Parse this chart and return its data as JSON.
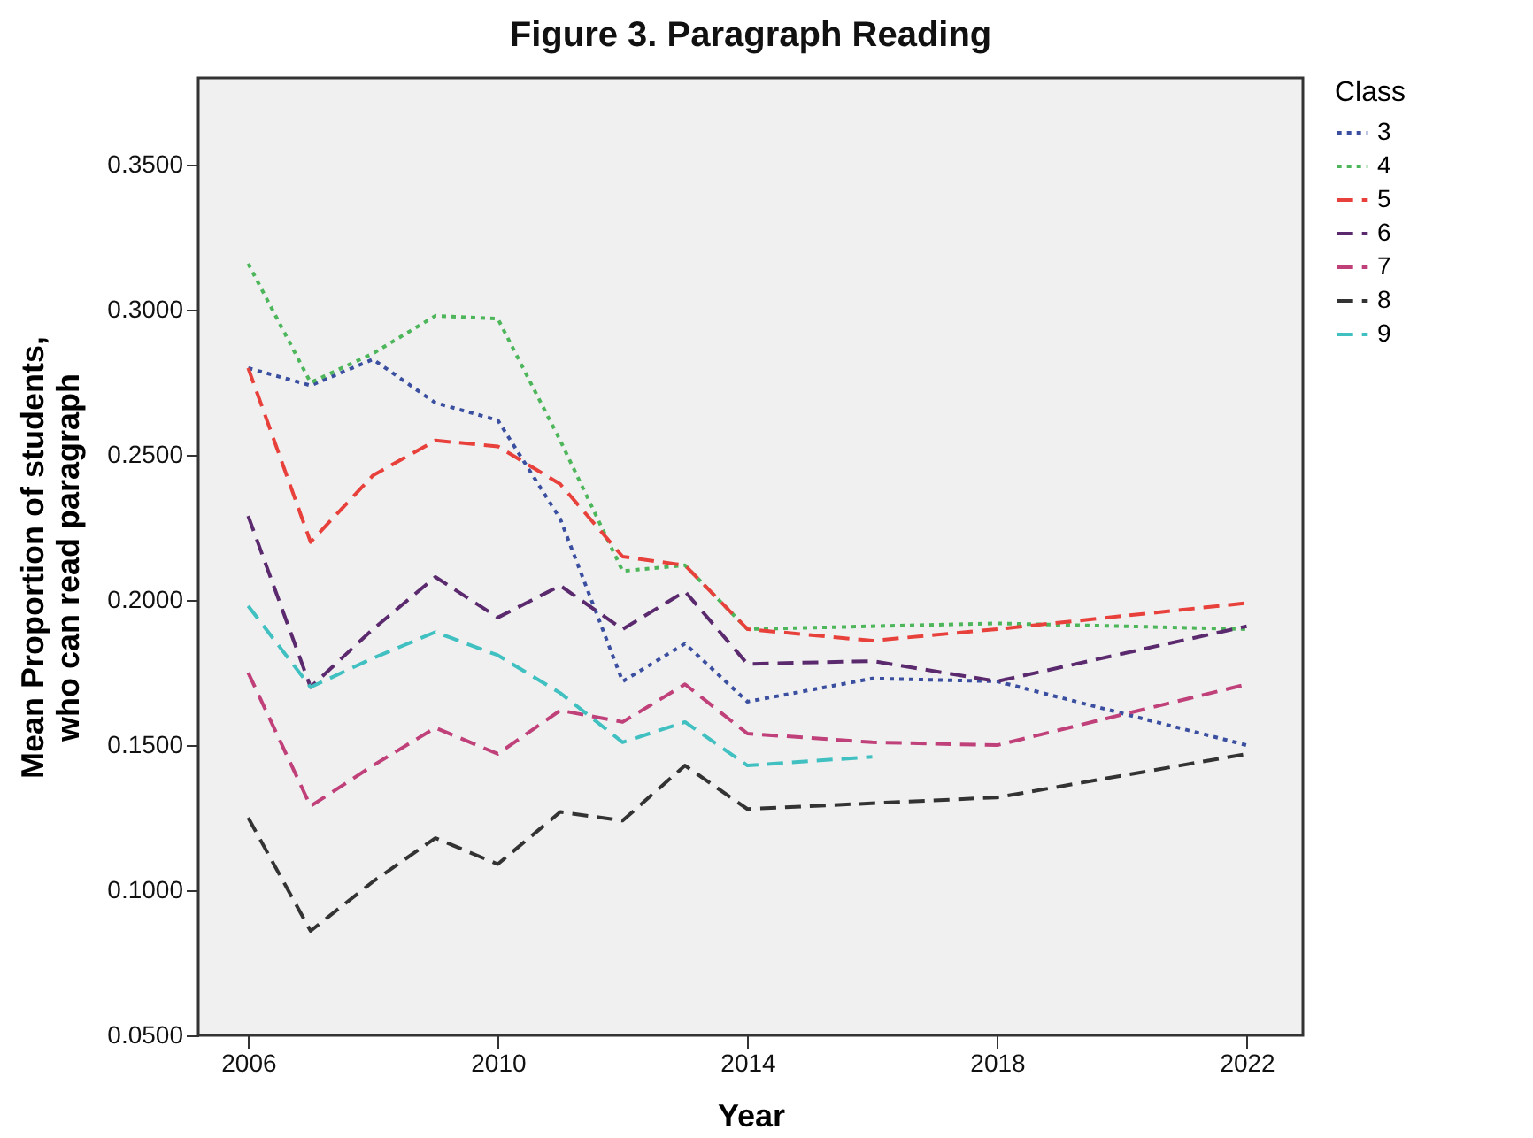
{
  "chart_data": {
    "type": "line",
    "title": "Figure 3. Paragraph Reading",
    "xlabel": "Year",
    "ylabel": "Mean Proportion of students, who can read paragraph",
    "legend_title": "Class",
    "legend": "top right",
    "grid": false,
    "marker": "none",
    "xlim": [
      2005.2,
      2022.9
    ],
    "xticks": [
      2006,
      2010,
      2014,
      2018,
      2022
    ],
    "ylim": [
      0.05,
      0.38
    ],
    "yticks": [
      {
        "value": 0.05,
        "label": "0.0500"
      },
      {
        "value": 0.1,
        "label": "0.1000"
      },
      {
        "value": 0.15,
        "label": "0.1500"
      },
      {
        "value": 0.2,
        "label": "0.2000"
      },
      {
        "value": 0.25,
        "label": "0.2500"
      },
      {
        "value": 0.3,
        "label": "0.3000"
      },
      {
        "value": 0.35,
        "label": "0.3500"
      }
    ],
    "series": [
      {
        "name": "3",
        "color": "#3b4fa0",
        "line_style": "dotted",
        "x": [
          2006,
          2007,
          2008,
          2009,
          2010,
          2011,
          2012,
          2013,
          2014,
          2016,
          2018,
          2022
        ],
        "values": [
          0.28,
          0.274,
          0.283,
          0.268,
          0.262,
          0.228,
          0.172,
          0.185,
          0.165,
          0.173,
          0.172,
          0.15
        ]
      },
      {
        "name": "4",
        "color": "#4db65a",
        "line_style": "dotted",
        "x": [
          2006,
          2007,
          2008,
          2009,
          2010,
          2011,
          2012,
          2013,
          2014,
          2018,
          2022
        ],
        "values": [
          0.316,
          0.275,
          0.285,
          0.298,
          0.297,
          0.255,
          0.21,
          0.212,
          0.19,
          0.192,
          0.19
        ]
      },
      {
        "name": "5",
        "color": "#e8413c",
        "line_style": "dashed",
        "x": [
          2006,
          2007,
          2008,
          2009,
          2010,
          2011,
          2012,
          2013,
          2014,
          2016,
          2018,
          2022
        ],
        "values": [
          0.28,
          0.22,
          0.243,
          0.255,
          0.253,
          0.24,
          0.215,
          0.212,
          0.19,
          0.186,
          0.19,
          0.199
        ]
      },
      {
        "name": "6",
        "color": "#5b2a6e",
        "line_style": "dashed",
        "x": [
          2006,
          2007,
          2008,
          2009,
          2010,
          2011,
          2012,
          2013,
          2014,
          2016,
          2018,
          2022
        ],
        "values": [
          0.229,
          0.17,
          0.19,
          0.208,
          0.194,
          0.205,
          0.19,
          0.203,
          0.178,
          0.179,
          0.172,
          0.191
        ]
      },
      {
        "name": "7",
        "color": "#c0407a",
        "line_style": "dashed",
        "x": [
          2006,
          2007,
          2008,
          2009,
          2010,
          2011,
          2012,
          2013,
          2014,
          2016,
          2018,
          2022
        ],
        "values": [
          0.175,
          0.129,
          0.143,
          0.156,
          0.147,
          0.162,
          0.158,
          0.171,
          0.154,
          0.151,
          0.15,
          0.171
        ]
      },
      {
        "name": "8",
        "color": "#333333",
        "line_style": "dashed",
        "x": [
          2006,
          2007,
          2008,
          2009,
          2010,
          2011,
          2012,
          2013,
          2014,
          2018,
          2022
        ],
        "values": [
          0.125,
          0.086,
          0.103,
          0.118,
          0.109,
          0.127,
          0.124,
          0.143,
          0.128,
          0.132,
          0.147
        ]
      },
      {
        "name": "9",
        "color": "#40c0c0",
        "line_style": "dashed",
        "x": [
          2006,
          2007,
          2008,
          2009,
          2010,
          2011,
          2012,
          2013,
          2014,
          2016
        ],
        "values": [
          0.198,
          0.17,
          0.18,
          0.189,
          0.181,
          0.168,
          0.151,
          0.158,
          0.143,
          0.146
        ]
      }
    ]
  }
}
